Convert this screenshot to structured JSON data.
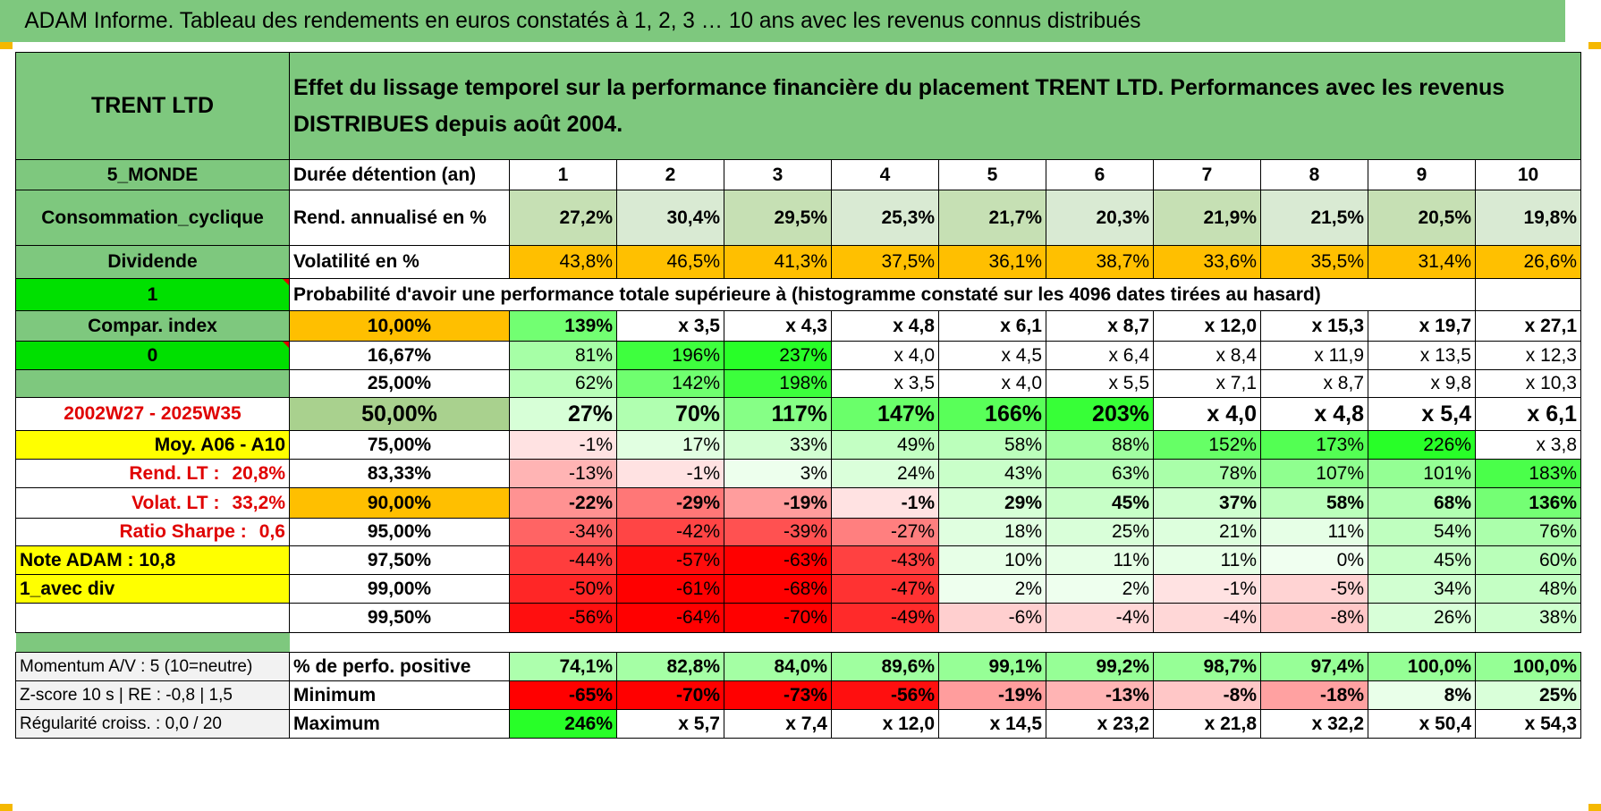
{
  "title": "ADAM Informe. Tableau des rendements en euros constatés à 1, 2, 3 … 10 ans avec les revenus connus distribués",
  "colors": {
    "header_green": "#7ec87e",
    "yellow": "#ffff00",
    "lime": "#00e000",
    "orange": "#ffbf00",
    "red_text": "#e00000"
  },
  "header": {
    "fund_name": "TRENT LTD",
    "description": "Effet du lissage temporel sur la performance financière du placement TRENT LTD. Performances avec les revenus DISTRIBUES depuis août 2004."
  },
  "meta": {
    "zone": "5_MONDE",
    "sector": "Consommation_cyclique",
    "dividend": "Dividende",
    "flag1": "1",
    "compar_index": "Compar. index",
    "flag0": "0",
    "period": "2002W27 - 2025W35",
    "moy": "Moy. A06 - A10",
    "rend_lt_label": "Rend. LT :",
    "rend_lt_value": "20,8%",
    "volat_lt_label": "Volat. LT :",
    "volat_lt_value": "33,2%",
    "sharpe_label": "Ratio Sharpe :",
    "sharpe_value": "0,6",
    "note_adam": "Note ADAM : 10,8",
    "avec_div": "1_avec div"
  },
  "rows": {
    "duration": {
      "label": "Durée détention (an)",
      "values": [
        "1",
        "2",
        "3",
        "4",
        "5",
        "6",
        "7",
        "8",
        "9",
        "10"
      ]
    },
    "rend": {
      "label": "Rend. annualisé en %",
      "values": [
        "27,2%",
        "30,4%",
        "29,5%",
        "25,3%",
        "21,7%",
        "20,3%",
        "21,9%",
        "21,5%",
        "20,5%",
        "19,8%"
      ]
    },
    "volat": {
      "label": "Volatilité en %",
      "values": [
        "43,8%",
        "46,5%",
        "41,3%",
        "37,5%",
        "36,1%",
        "38,7%",
        "33,6%",
        "35,5%",
        "31,4%",
        "26,6%"
      ]
    }
  },
  "hist_title": "Probabilité d'avoir une performance totale supérieure à (histogramme constaté sur les 4096 dates tirées au hasard)",
  "prob_rows": [
    {
      "p": "10,00%",
      "values": [
        "139%",
        "x 3,5",
        "x 4,3",
        "x 4,8",
        "x 6,1",
        "x 8,7",
        "x 12,0",
        "x 15,3",
        "x 19,7",
        "x 27,1"
      ]
    },
    {
      "p": "16,67%",
      "values": [
        "81%",
        "196%",
        "237%",
        "x 4,0",
        "x 4,5",
        "x 6,4",
        "x 8,4",
        "x 11,9",
        "x 13,5",
        "x 12,3"
      ]
    },
    {
      "p": "25,00%",
      "values": [
        "62%",
        "142%",
        "198%",
        "x 3,5",
        "x 4,0",
        "x 5,5",
        "x 7,1",
        "x 8,7",
        "x 9,8",
        "x 10,3"
      ]
    },
    {
      "p": "50,00%",
      "values": [
        "27%",
        "70%",
        "117%",
        "147%",
        "166%",
        "203%",
        "x 4,0",
        "x 4,8",
        "x 5,4",
        "x 6,1"
      ]
    },
    {
      "p": "75,00%",
      "values": [
        "-1%",
        "17%",
        "33%",
        "49%",
        "58%",
        "88%",
        "152%",
        "173%",
        "226%",
        "x 3,8"
      ]
    },
    {
      "p": "83,33%",
      "values": [
        "-13%",
        "-1%",
        "3%",
        "24%",
        "43%",
        "63%",
        "78%",
        "107%",
        "101%",
        "183%"
      ]
    },
    {
      "p": "90,00%",
      "values": [
        "-22%",
        "-29%",
        "-19%",
        "-1%",
        "29%",
        "45%",
        "37%",
        "58%",
        "68%",
        "136%"
      ]
    },
    {
      "p": "95,00%",
      "values": [
        "-34%",
        "-42%",
        "-39%",
        "-27%",
        "18%",
        "25%",
        "21%",
        "11%",
        "54%",
        "76%"
      ]
    },
    {
      "p": "97,50%",
      "values": [
        "-44%",
        "-57%",
        "-63%",
        "-43%",
        "10%",
        "11%",
        "11%",
        "0%",
        "45%",
        "60%"
      ]
    },
    {
      "p": "99,00%",
      "values": [
        "-50%",
        "-61%",
        "-68%",
        "-47%",
        "2%",
        "2%",
        "-1%",
        "-5%",
        "34%",
        "48%"
      ]
    },
    {
      "p": "99,50%",
      "values": [
        "-56%",
        "-64%",
        "-70%",
        "-49%",
        "-6%",
        "-4%",
        "-4%",
        "-8%",
        "26%",
        "38%"
      ]
    }
  ],
  "stats": [
    {
      "left": "Momentum A/V : 5 (10=neutre)",
      "label": "% de perfo. positive",
      "values": [
        "74,1%",
        "82,8%",
        "84,0%",
        "89,6%",
        "99,1%",
        "99,2%",
        "98,7%",
        "97,4%",
        "100,0%",
        "100,0%"
      ]
    },
    {
      "left": "Z-score 10 s | RE : -0,8 | 1,5",
      "label": "Minimum",
      "values": [
        "-65%",
        "-70%",
        "-73%",
        "-56%",
        "-19%",
        "-13%",
        "-8%",
        "-18%",
        "8%",
        "25%"
      ]
    },
    {
      "left": "Régularité croiss. : 0,0 / 20",
      "label": "Maximum",
      "values": [
        "246%",
        "x 5,7",
        "x 7,4",
        "x 12,0",
        "x 14,5",
        "x 23,2",
        "x 21,8",
        "x 32,2",
        "x 50,4",
        "x 54,3"
      ]
    }
  ]
}
